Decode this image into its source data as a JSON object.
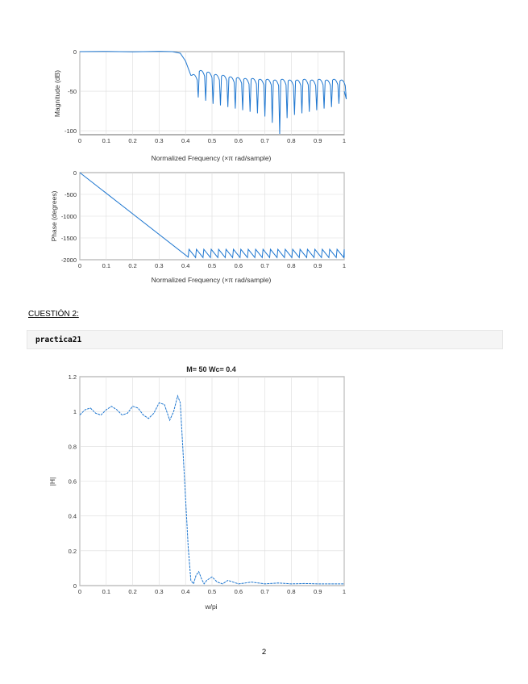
{
  "section": {
    "heading": "CUESTIÓN 2:"
  },
  "code": {
    "command": "practica21"
  },
  "page": {
    "number": "2"
  },
  "chart_data": [
    {
      "type": "line",
      "title": "",
      "xlabel": "Normalized Frequency  (×π rad/sample)",
      "ylabel": "Magnitude (dB)",
      "xlim": [
        0,
        1
      ],
      "ylim": [
        -105,
        0
      ],
      "xticks": [
        "0",
        "0.1",
        "0.2",
        "0.3",
        "0.4",
        "0.5",
        "0.6",
        "0.7",
        "0.8",
        "0.9",
        "1"
      ],
      "yticks": [
        0,
        -50,
        -100
      ],
      "grid": true,
      "color": "#1f77d0",
      "series": [
        {
          "x": [
            0,
            0.1,
            0.2,
            0.3,
            0.35,
            0.38,
            0.4,
            0.42
          ],
          "y": [
            0,
            0.3,
            -0.3,
            0.4,
            0,
            -2,
            -12,
            -30
          ]
        }
      ],
      "sidelobes": {
        "x": [
          0.42,
          0.448,
          0.476,
          0.504,
          0.532,
          0.56,
          0.588,
          0.616,
          0.644,
          0.672,
          0.7,
          0.728,
          0.756,
          0.784,
          0.812,
          0.84,
          0.868,
          0.896,
          0.924,
          0.952,
          0.98
        ],
        "peak": [
          -30,
          -25,
          -27,
          -30,
          -31,
          -33,
          -34,
          -35,
          -35,
          -36,
          -36,
          -37,
          -36,
          -37,
          -37,
          -36,
          -37,
          -36,
          -37,
          -36,
          -37
        ],
        "null": [
          -58,
          -62,
          -66,
          -68,
          -70,
          -72,
          -74,
          -76,
          -78,
          -82,
          -90,
          -105,
          -84,
          -80,
          -78,
          -76,
          -74,
          -72,
          -70,
          -66,
          -60
        ]
      }
    },
    {
      "type": "line",
      "title": "",
      "xlabel": "Normalized Frequency  (×π rad/sample)",
      "ylabel": "Phase (degrees)",
      "xlim": [
        0,
        1
      ],
      "ylim": [
        -2000,
        0
      ],
      "xticks": [
        "0",
        "0.1",
        "0.2",
        "0.3",
        "0.4",
        "0.5",
        "0.6",
        "0.7",
        "0.8",
        "0.9",
        "1"
      ],
      "yticks": [
        0,
        -500,
        -1000,
        -1500,
        -2000
      ],
      "grid": true,
      "color": "#1f77d0",
      "series": [
        {
          "x": [
            0,
            0.41
          ],
          "y": [
            0,
            -1940
          ]
        }
      ],
      "sawtooth": {
        "start": 0.41,
        "period": 0.028,
        "high": -1760,
        "low": -1950
      }
    },
    {
      "type": "line",
      "title": "M= 50      Wc= 0.4",
      "xlabel": "w/pi",
      "ylabel": "|H|",
      "xlim": [
        0,
        1
      ],
      "ylim": [
        0,
        1.2
      ],
      "xticks": [
        "0",
        "0.1",
        "0.2",
        "0.3",
        "0.4",
        "0.5",
        "0.6",
        "0.7",
        "0.8",
        "0.9",
        "1"
      ],
      "yticks": [
        "0",
        "0.2",
        "0.4",
        "0.6",
        "0.8",
        "1",
        "1.2"
      ],
      "grid": true,
      "color": "#1f77d0",
      "series": [
        {
          "x": [
            0,
            0.02,
            0.04,
            0.06,
            0.08,
            0.1,
            0.12,
            0.14,
            0.16,
            0.18,
            0.2,
            0.22,
            0.24,
            0.26,
            0.28,
            0.3,
            0.32,
            0.34,
            0.355,
            0.37,
            0.38,
            0.39,
            0.4,
            0.41,
            0.42,
            0.43,
            0.44,
            0.45,
            0.46,
            0.47,
            0.48,
            0.5,
            0.52,
            0.54,
            0.56,
            0.58,
            0.6,
            0.65,
            0.7,
            0.75,
            0.8,
            0.85,
            0.9,
            0.95,
            1.0
          ],
          "y": [
            0.98,
            1.01,
            1.02,
            0.99,
            0.98,
            1.01,
            1.03,
            1.01,
            0.98,
            0.99,
            1.03,
            1.02,
            0.98,
            0.96,
            0.99,
            1.05,
            1.04,
            0.95,
            1.0,
            1.09,
            1.05,
            0.78,
            0.5,
            0.22,
            0.03,
            0.01,
            0.06,
            0.08,
            0.04,
            0.01,
            0.03,
            0.05,
            0.02,
            0.01,
            0.03,
            0.02,
            0.01,
            0.02,
            0.01,
            0.015,
            0.01,
            0.012,
            0.01,
            0.01,
            0.01
          ]
        }
      ]
    }
  ]
}
